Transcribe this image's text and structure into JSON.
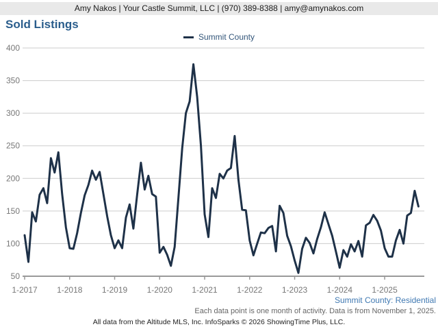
{
  "header": {
    "contact_line": "Amy Nakos | Your Castle Summit, LLC | (970) 389-8388 | amy@amynakos.com"
  },
  "title": "Sold Listings",
  "legend": {
    "label": "Summit County"
  },
  "footer": {
    "region_line": "Summit County: Residential",
    "note_line": "Each data point is one month of activity. Data is from November 1, 2025.",
    "attribution": "All data from the Altitude MLS, Inc. InfoSparks © 2026 ShowingTime Plus, LLC."
  },
  "colors": {
    "line": "#1e3148",
    "title": "#2a5d8c",
    "legend_text": "#33567a",
    "grid": "#cccccc",
    "axis": "#999999",
    "tick_label": "#777777",
    "header_bg": "#e9e9e9",
    "region_text": "#4079b2"
  },
  "chart_data": {
    "type": "line",
    "title": "Sold Listings",
    "x_start": "2017-01",
    "x_end": "2025-10",
    "x_step": "1 month",
    "xlabel": "",
    "ylabel": "",
    "ylim": [
      50,
      400
    ],
    "grid": "horizontal",
    "legend_position": "top-center",
    "y_ticks": [
      400,
      350,
      300,
      250,
      200,
      150,
      100,
      50
    ],
    "x_tick_labels": [
      "1-2017",
      "1-2018",
      "1-2019",
      "1-2020",
      "1-2021",
      "1-2022",
      "1-2023",
      "1-2024",
      "1-2025"
    ],
    "series": [
      {
        "name": "Summit County",
        "values": [
          113,
          72,
          148,
          134,
          175,
          185,
          162,
          231,
          209,
          240,
          176,
          125,
          93,
          92,
          116,
          147,
          174,
          190,
          212,
          198,
          210,
          176,
          142,
          113,
          93,
          105,
          93,
          140,
          160,
          123,
          175,
          224,
          183,
          204,
          176,
          172,
          86,
          95,
          83,
          66,
          95,
          170,
          246,
          300,
          318,
          375,
          325,
          250,
          145,
          110,
          185,
          170,
          207,
          200,
          212,
          216,
          265,
          198,
          152,
          151,
          105,
          82,
          100,
          117,
          116,
          124,
          127,
          88,
          158,
          147,
          112,
          96,
          74,
          55,
          92,
          109,
          101,
          85,
          107,
          125,
          148,
          130,
          112,
          88,
          63,
          90,
          80,
          99,
          88,
          104,
          80,
          128,
          132,
          144,
          135,
          120,
          93,
          80,
          80,
          105,
          121,
          100,
          143,
          147,
          181,
          157
        ]
      }
    ]
  }
}
